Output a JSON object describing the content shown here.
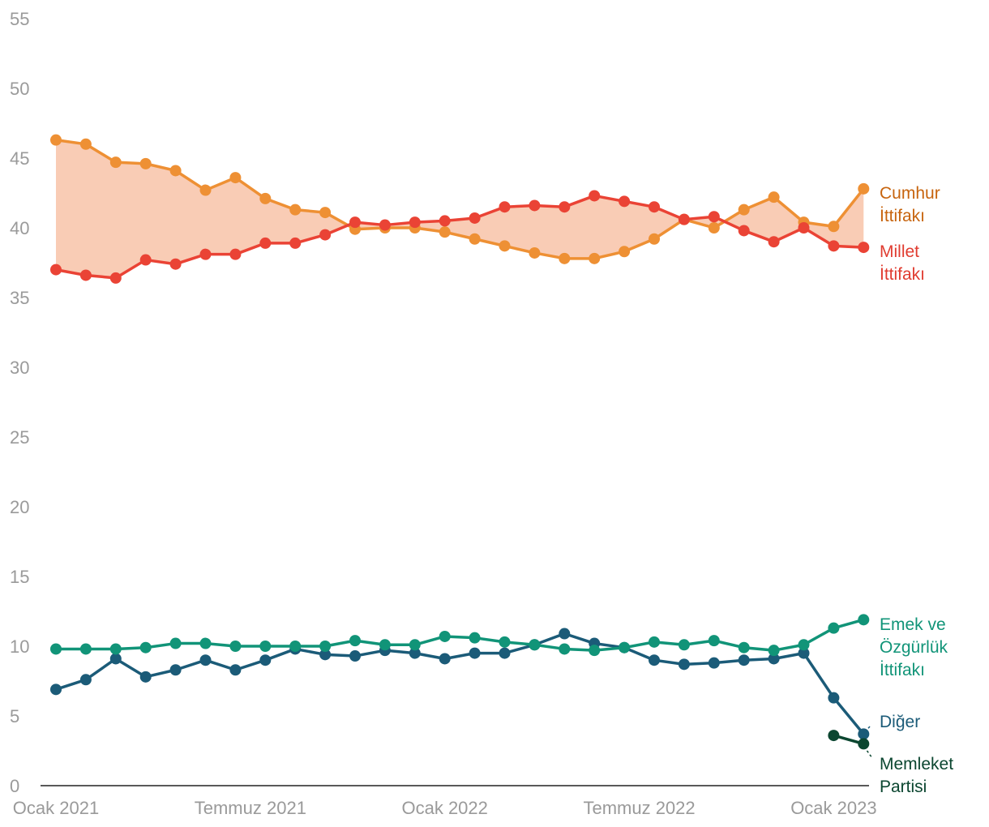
{
  "chart_data": {
    "type": "line",
    "title": "",
    "xlabel": "",
    "ylabel": "",
    "ylim": [
      0,
      55
    ],
    "y_ticks": [
      "0",
      "5",
      "10",
      "15",
      "20",
      "25",
      "30",
      "35",
      "40",
      "45",
      "50",
      "55"
    ],
    "x_ticks": [
      "Ocak 2021",
      "Temmuz 2021",
      "Ocak 2022",
      "Temmuz 2022",
      "Ocak 2023"
    ],
    "grid": false,
    "legend": "right-end labels",
    "fill_between": [
      "Cumhur İttifakı",
      "Millet İttifakı"
    ],
    "fill_color": "#f9ccb5",
    "series": [
      {
        "name": "Cumhur İttifakı",
        "label_lines": [
          "Cumhur",
          "İttifakı"
        ],
        "color": "#ee9034",
        "label_color": "#c7640e",
        "start_index": 0,
        "values": [
          46.3,
          46.0,
          44.7,
          44.6,
          44.1,
          42.7,
          43.6,
          42.1,
          41.3,
          41.1,
          39.9,
          40.0,
          40.0,
          39.7,
          39.2,
          38.7,
          38.2,
          37.8,
          37.8,
          38.3,
          39.2,
          40.6,
          40.0,
          41.3,
          42.2,
          40.4,
          40.1,
          42.8
        ]
      },
      {
        "name": "Millet İttifakı",
        "label_lines": [
          "Millet",
          "İttifakı"
        ],
        "color": "#ea4335",
        "label_color": "#e03c30",
        "start_index": 0,
        "values": [
          37.0,
          36.6,
          36.4,
          37.7,
          37.4,
          38.1,
          38.1,
          38.9,
          38.9,
          39.5,
          40.4,
          40.2,
          40.4,
          40.5,
          40.7,
          41.5,
          41.6,
          41.5,
          42.3,
          41.9,
          41.5,
          40.6,
          40.8,
          39.8,
          39.0,
          40.0,
          38.7,
          38.6
        ]
      },
      {
        "name": "Emek ve Özgürlük İttifakı",
        "label_lines": [
          "Emek ve",
          "Özgürlük",
          "İttifakı"
        ],
        "color": "#119478",
        "label_color": "#119478",
        "start_index": 0,
        "values": [
          9.8,
          9.8,
          9.8,
          9.9,
          10.2,
          10.2,
          10.0,
          10.0,
          10.0,
          10.0,
          10.4,
          10.1,
          10.1,
          10.7,
          10.6,
          10.3,
          10.1,
          9.8,
          9.7,
          9.9,
          10.3,
          10.1,
          10.4,
          9.9,
          9.7,
          10.1,
          11.3,
          11.9
        ]
      },
      {
        "name": "Diğer",
        "label_lines": [
          "Diğer"
        ],
        "color": "#1b5b78",
        "label_color": "#1b5b78",
        "start_index": 0,
        "values": [
          6.9,
          7.6,
          9.1,
          7.8,
          8.3,
          9.0,
          8.3,
          9.0,
          9.8,
          9.4,
          9.3,
          9.7,
          9.5,
          9.1,
          9.5,
          9.5,
          10.1,
          10.9,
          10.2,
          9.9,
          9.0,
          8.7,
          8.8,
          9.0,
          9.1,
          9.5,
          6.3,
          3.7
        ]
      },
      {
        "name": "Memleket Partisi",
        "label_lines": [
          "Memleket",
          "Partisi"
        ],
        "color": "#0b4630",
        "label_color": "#0b4630",
        "start_index": 26,
        "values": [
          3.6,
          3.0
        ]
      }
    ]
  }
}
